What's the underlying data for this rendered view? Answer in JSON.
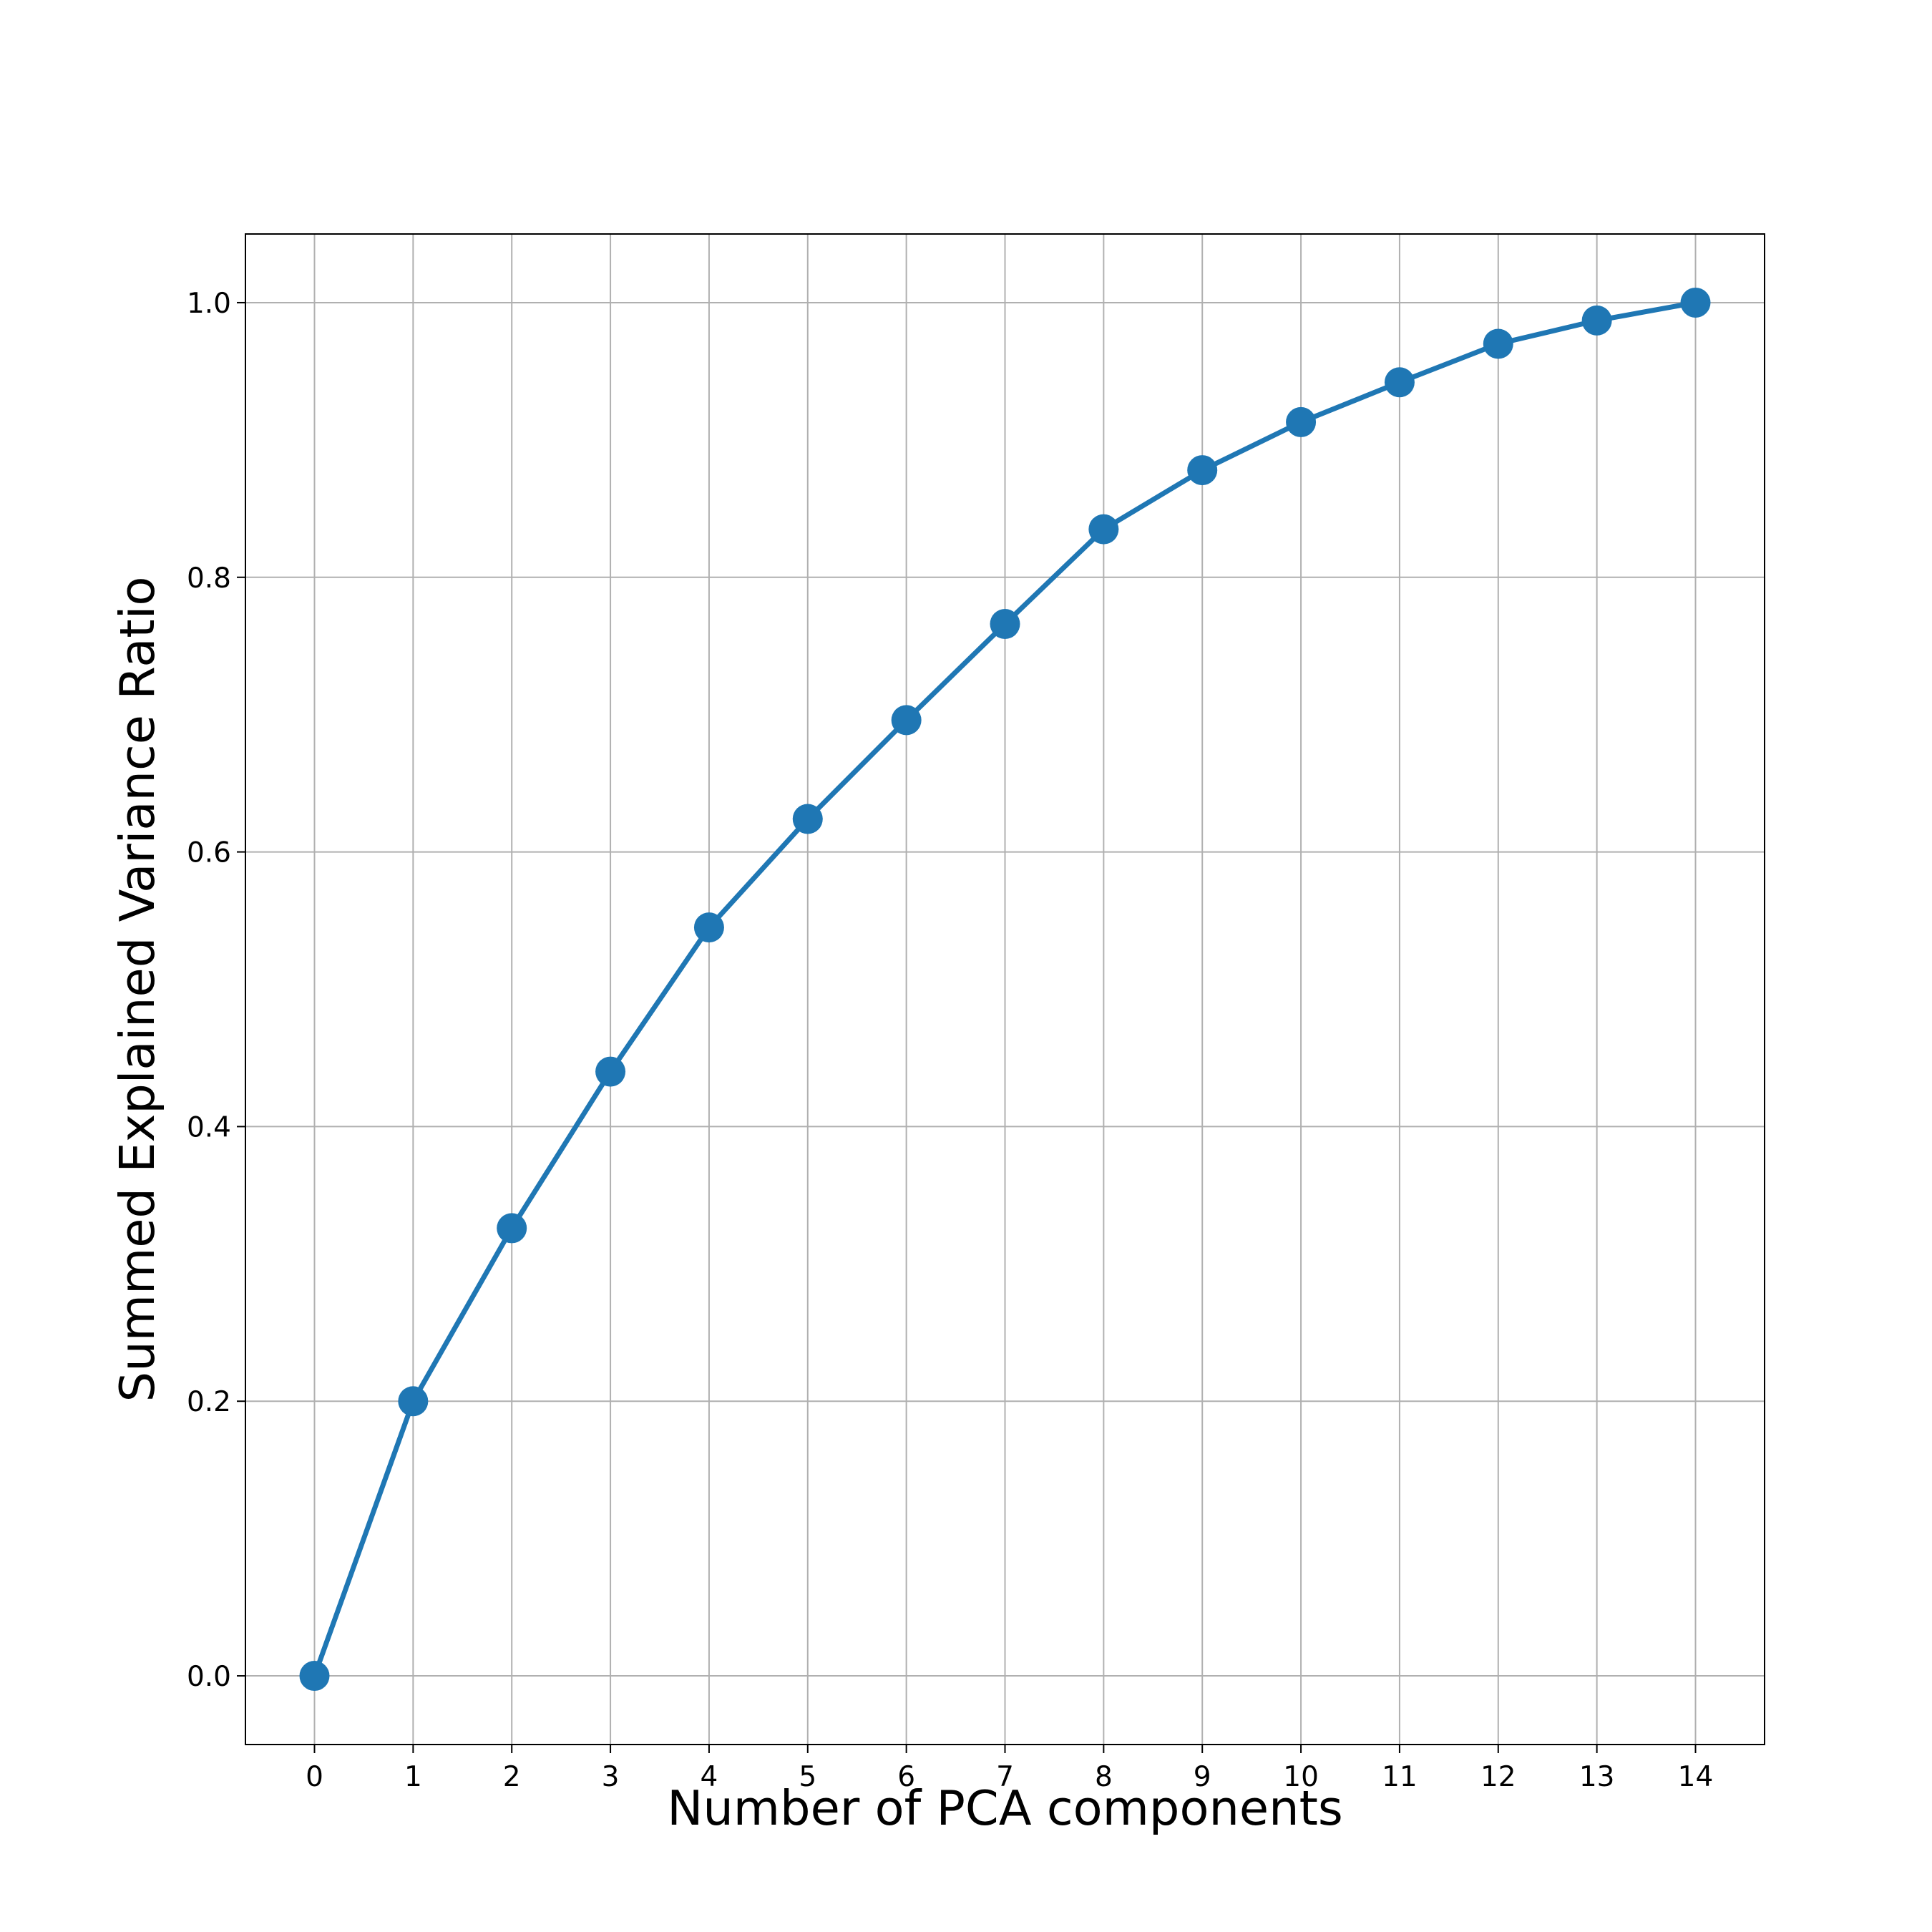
{
  "chart_data": {
    "type": "line",
    "title": "",
    "xlabel": "Number of PCA components",
    "ylabel": "Summed Explained Variance Ratio",
    "x": [
      0,
      1,
      2,
      3,
      4,
      5,
      6,
      7,
      8,
      9,
      10,
      11,
      12,
      13,
      14
    ],
    "series": [
      {
        "values": [
          0.0,
          0.2,
          0.326,
          0.44,
          0.545,
          0.624,
          0.696,
          0.766,
          0.835,
          0.878,
          0.913,
          0.942,
          0.97,
          0.987,
          1.0
        ],
        "color": "#1f77b4",
        "marker": "circle"
      }
    ],
    "xlim": [
      -0.7,
      14.7
    ],
    "ylim": [
      -0.05,
      1.05
    ],
    "xticks": [
      "0",
      "1",
      "2",
      "3",
      "4",
      "5",
      "6",
      "7",
      "8",
      "9",
      "10",
      "11",
      "12",
      "13",
      "14"
    ],
    "yticks": [
      "0.0",
      "0.2",
      "0.4",
      "0.6",
      "0.8",
      "1.0"
    ],
    "grid": true,
    "legend": false
  }
}
